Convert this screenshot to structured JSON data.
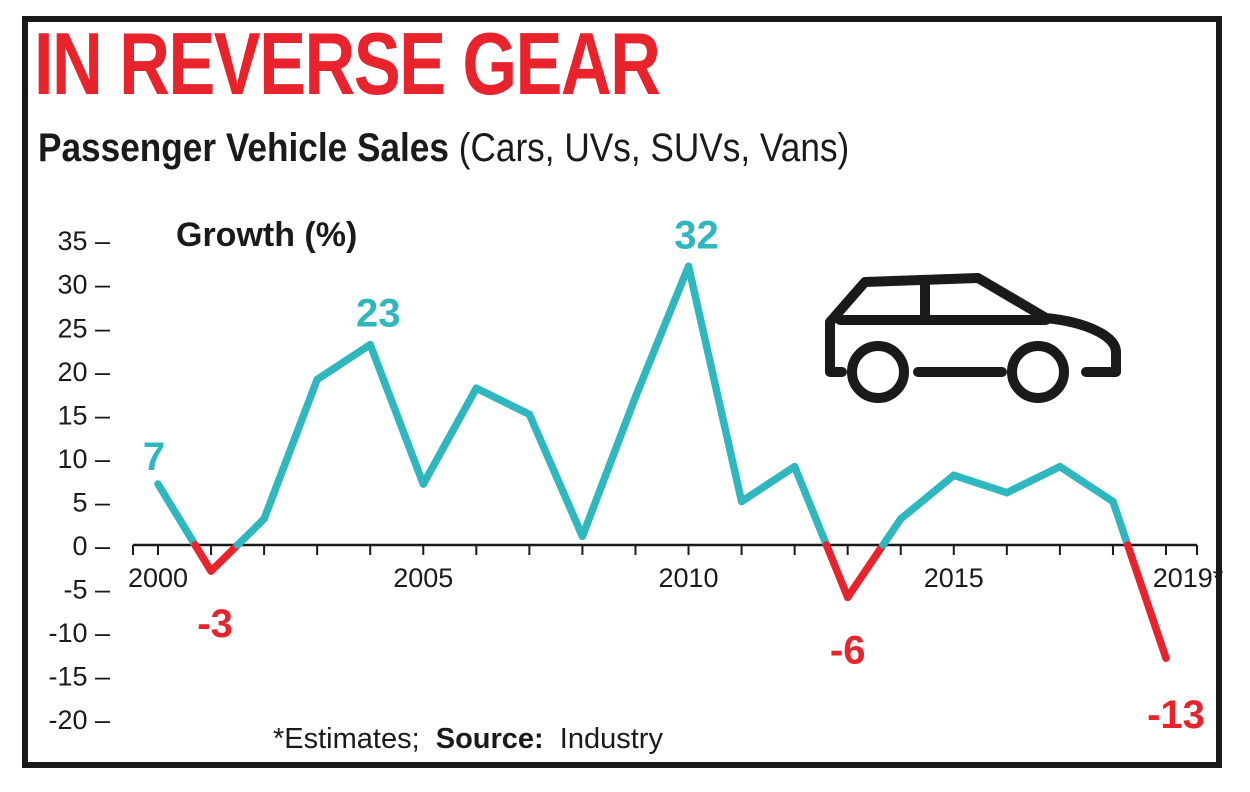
{
  "colors": {
    "title": "#e8232c",
    "positive": "#2fb7c0",
    "negative": "#e8232c",
    "text": "#1a1a1a",
    "border": "#1a1a1a"
  },
  "header": {
    "title": "IN REVERSE GEAR",
    "subtitle_bold": "Passenger Vehicle Sales",
    "subtitle_rest": "(Cars, UVs, SUVs, Vans)"
  },
  "footnote": {
    "prefix": "*Estimates;",
    "source_label": "Source:",
    "source_value": "Industry"
  },
  "icons": [
    "car-icon"
  ],
  "chart_data": {
    "type": "line",
    "ylabel": "Growth (%)",
    "ylim": [
      -20,
      35
    ],
    "yticks": [
      35,
      30,
      25,
      20,
      15,
      10,
      5,
      0,
      -5,
      -10,
      -15,
      -20
    ],
    "xlim": [
      2000,
      2019
    ],
    "xtick_labels": [
      {
        "x": 2000,
        "label": "2000"
      },
      {
        "x": 2005,
        "label": "2005"
      },
      {
        "x": 2010,
        "label": "2010"
      },
      {
        "x": 2015,
        "label": "2015"
      },
      {
        "x": 2019,
        "label": "2019*"
      }
    ],
    "x": [
      2000,
      2001,
      2002,
      2003,
      2004,
      2005,
      2006,
      2007,
      2008,
      2009,
      2010,
      2011,
      2012,
      2013,
      2014,
      2015,
      2016,
      2017,
      2018,
      2019
    ],
    "values": [
      7,
      -3,
      3,
      19,
      23,
      7,
      18,
      15,
      1,
      17,
      32,
      5,
      9,
      -6,
      3,
      8,
      6,
      9,
      5,
      -13
    ],
    "data_labels": [
      {
        "x": 2000,
        "value": 7,
        "label": "7"
      },
      {
        "x": 2001,
        "value": -3,
        "label": "-3"
      },
      {
        "x": 2004,
        "value": 23,
        "label": "23"
      },
      {
        "x": 2010,
        "value": 32,
        "label": "32"
      },
      {
        "x": 2013,
        "value": -6,
        "label": "-6"
      },
      {
        "x": 2019,
        "value": -13,
        "label": "-13"
      }
    ],
    "grid": false,
    "legend": "none"
  }
}
